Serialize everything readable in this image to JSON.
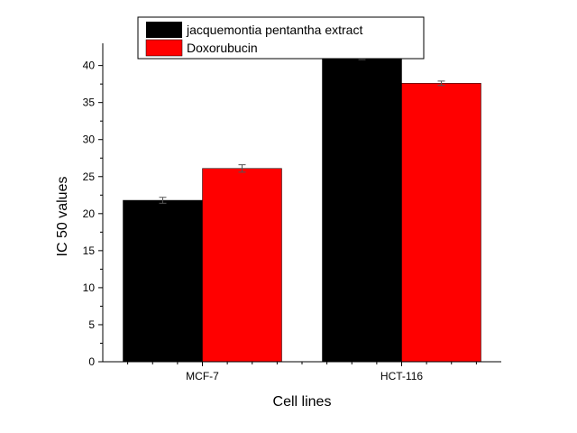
{
  "chart_data": {
    "type": "bar",
    "categories": [
      "MCF-7",
      "HCT-116"
    ],
    "series": [
      {
        "name": "jacquemontia pentantha extract",
        "color": "#000000",
        "values": [
          21.8,
          41.0
        ],
        "errors": [
          0.4,
          0.2
        ]
      },
      {
        "name": "Doxorubucin",
        "color": "#ff0000",
        "values": [
          26.1,
          37.6
        ],
        "errors": [
          0.5,
          0.3
        ]
      }
    ],
    "xlabel": "Cell lines",
    "ylabel": "IC 50 values",
    "ylim": [
      0,
      43
    ],
    "yticks": [
      0,
      5,
      10,
      15,
      20,
      25,
      30,
      35,
      40
    ],
    "grid": false,
    "legend_position": "top"
  }
}
